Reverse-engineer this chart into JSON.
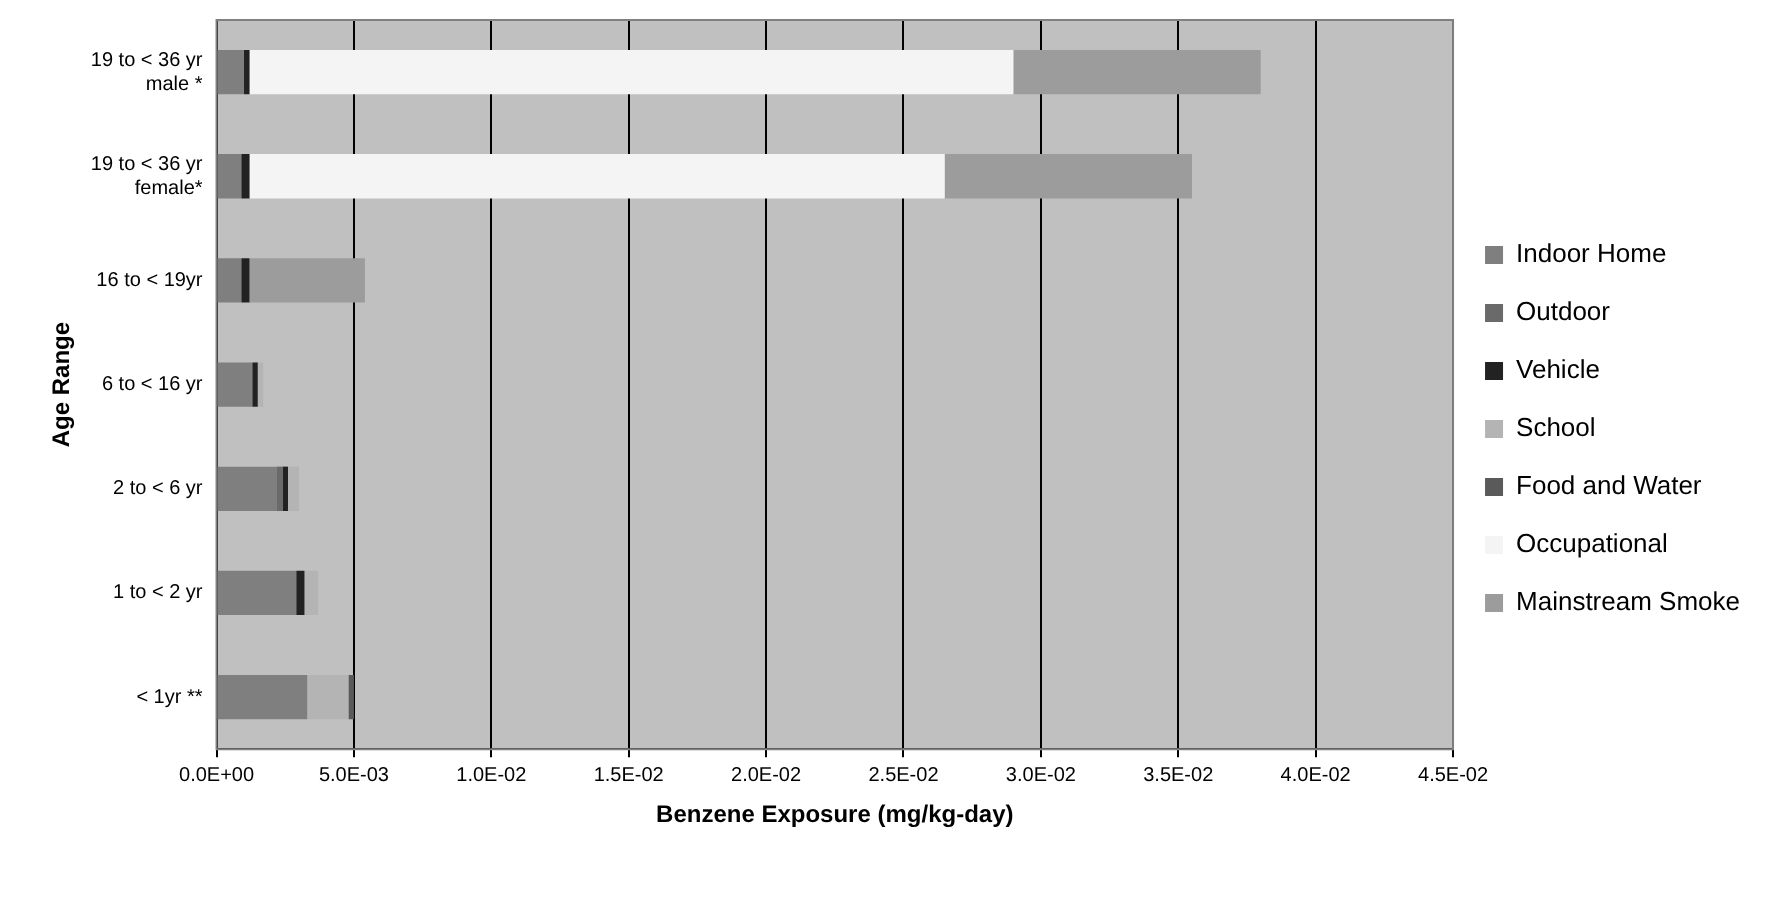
{
  "chart_data": {
    "type": "bar",
    "orientation": "horizontal",
    "stacked": true,
    "xlabel": "Benzene Exposure (mg/kg-day)",
    "ylabel": "Age Range",
    "categories": [
      "19 to < 36 yr\nmale *",
      "19 to < 36 yr\nfemale*",
      "16 to < 19yr",
      "6 to < 16 yr",
      "2 to < 6 yr",
      "1 to < 2 yr",
      "< 1yr **"
    ],
    "xlim": [
      0,
      0.045
    ],
    "xticks": [
      {
        "value": 0,
        "label": "0.0E+00"
      },
      {
        "value": 0.005,
        "label": "5.0E-03"
      },
      {
        "value": 0.01,
        "label": "1.0E-02"
      },
      {
        "value": 0.015,
        "label": "1.5E-02"
      },
      {
        "value": 0.02,
        "label": "2.0E-02"
      },
      {
        "value": 0.025,
        "label": "2.5E-02"
      },
      {
        "value": 0.03,
        "label": "3.0E-02"
      },
      {
        "value": 0.035,
        "label": "3.5E-02"
      },
      {
        "value": 0.04,
        "label": "4.0E-02"
      },
      {
        "value": 0.045,
        "label": "4.5E-02"
      }
    ],
    "grid": "x",
    "legend": "right",
    "series": [
      {
        "name": "Indoor Home",
        "color": "#7f7f7f",
        "values": [
          0.001,
          0.0009,
          0.0009,
          0.0013,
          0.0022,
          0.0029,
          0.0033
        ]
      },
      {
        "name": "Outdoor",
        "color": "#6a6a6a",
        "values": [
          null,
          null,
          null,
          null,
          0.0002,
          null,
          null
        ]
      },
      {
        "name": "Vehicle",
        "color": "#222222",
        "values": [
          0.0002,
          0.0003,
          0.0003,
          0.0002,
          0.0002,
          0.0003,
          null
        ]
      },
      {
        "name": "School",
        "color": "#b4b4b4",
        "values": [
          null,
          null,
          null,
          0.0002,
          0.0004,
          0.0005,
          0.0015
        ]
      },
      {
        "name": "Food and Water",
        "color": "#5a5a5a",
        "values": [
          null,
          null,
          null,
          null,
          null,
          null,
          0.0002
        ]
      },
      {
        "name": "Occupational",
        "color": "#f4f4f4",
        "values": [
          0.0278,
          0.0253,
          null,
          null,
          null,
          null,
          null
        ]
      },
      {
        "name": "Mainstream Smoke",
        "color": "#9c9c9c",
        "values": [
          0.009,
          0.009,
          0.0042,
          null,
          null,
          null,
          null
        ]
      }
    ]
  }
}
